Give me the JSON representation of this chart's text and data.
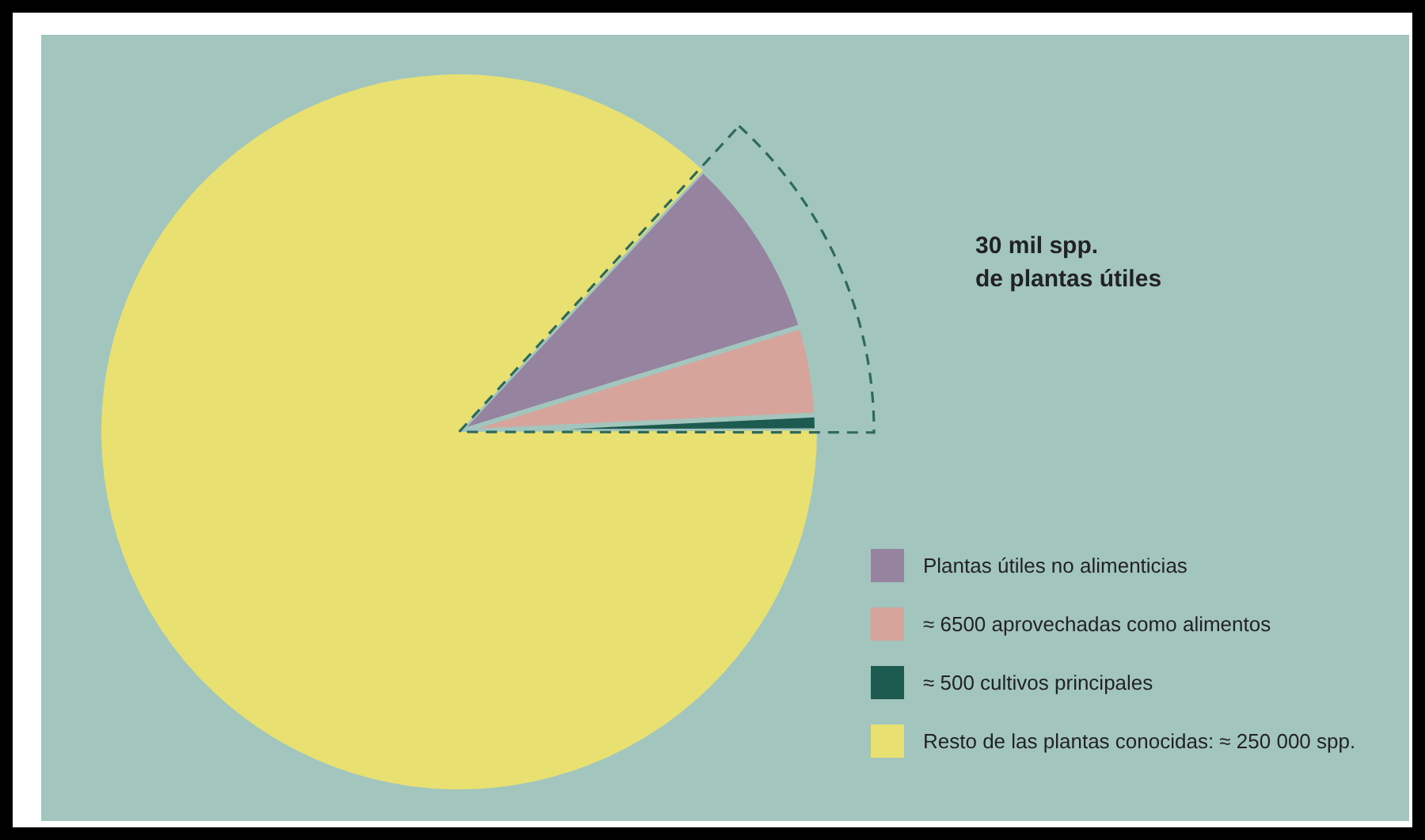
{
  "chart_data": {
    "type": "pie",
    "categories": [
      "Plantas útiles no alimenticias",
      "≈ 6500 aprovechadas como alimentos",
      "≈ 500 cultivos principales",
      "Resto de las plantas conocidas: ≈ 250 000 spp."
    ],
    "values": [
      8.3,
      4,
      0.7,
      87
    ],
    "colors": [
      "#95839f",
      "#d6a49b",
      "#1d5a4f",
      "#e8e171"
    ],
    "legend": "bottom right",
    "annotations": [
      "30 mil spp.\nde plantas útiles"
    ]
  }
}
